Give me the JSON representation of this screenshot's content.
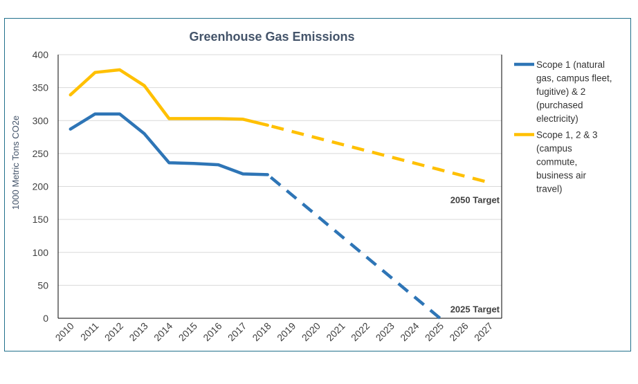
{
  "chart_data": {
    "type": "line",
    "title": "Greenhouse Gas Emissions",
    "xlabel": "",
    "ylabel": "1000 Metric Tons CO2e",
    "ylim": [
      0,
      400
    ],
    "yticks": [
      0,
      50,
      100,
      150,
      200,
      250,
      300,
      350,
      400
    ],
    "grid": true,
    "legend_position": "right",
    "categories": [
      "2010",
      "2011",
      "2012",
      "2013",
      "2014",
      "2015",
      "2016",
      "2017",
      "2018",
      "2019",
      "2020",
      "2021",
      "2022",
      "2023",
      "2024",
      "2025",
      "2026",
      "2027"
    ],
    "series": [
      {
        "name": "Scope 1 (natural gas, campus fleet, fugitive) & 2 (purchased electricity)",
        "legend_lines": [
          "Scope 1 (natural",
          "gas, campus fleet,",
          "fugitive) & 2",
          "(purchased",
          "electricity)"
        ],
        "color": "#2e75b6",
        "actual": [
          {
            "x": 2010,
            "y": 287
          },
          {
            "x": 2011,
            "y": 310
          },
          {
            "x": 2012,
            "y": 310
          },
          {
            "x": 2013,
            "y": 280
          },
          {
            "x": 2014,
            "y": 236
          },
          {
            "x": 2015,
            "y": 235
          },
          {
            "x": 2016,
            "y": 233
          },
          {
            "x": 2017,
            "y": 219
          },
          {
            "x": 2018,
            "y": 218
          }
        ],
        "projected": [
          {
            "x": 2018,
            "y": 218
          },
          {
            "x": 2025,
            "y": 0
          }
        ]
      },
      {
        "name": "Scope 1, 2 & 3 (campus commute, business air travel)",
        "legend_lines": [
          "Scope 1, 2 & 3",
          "(campus",
          "commute,",
          "business air",
          "travel)"
        ],
        "color": "#ffc000",
        "actual": [
          {
            "x": 2010,
            "y": 339
          },
          {
            "x": 2011,
            "y": 373
          },
          {
            "x": 2012,
            "y": 377
          },
          {
            "x": 2013,
            "y": 353
          },
          {
            "x": 2014,
            "y": 303
          },
          {
            "x": 2015,
            "y": 303
          },
          {
            "x": 2016,
            "y": 303
          },
          {
            "x": 2017,
            "y": 302
          },
          {
            "x": 2018,
            "y": 293
          }
        ],
        "projected": [
          {
            "x": 2018,
            "y": 293
          },
          {
            "x": 2027,
            "y": 206
          }
        ]
      }
    ],
    "annotations": [
      {
        "text": "2050 Target",
        "x": 2025.5,
        "y": 180
      },
      {
        "text": "2025 Target",
        "x": 2025.5,
        "y": 14
      }
    ]
  }
}
